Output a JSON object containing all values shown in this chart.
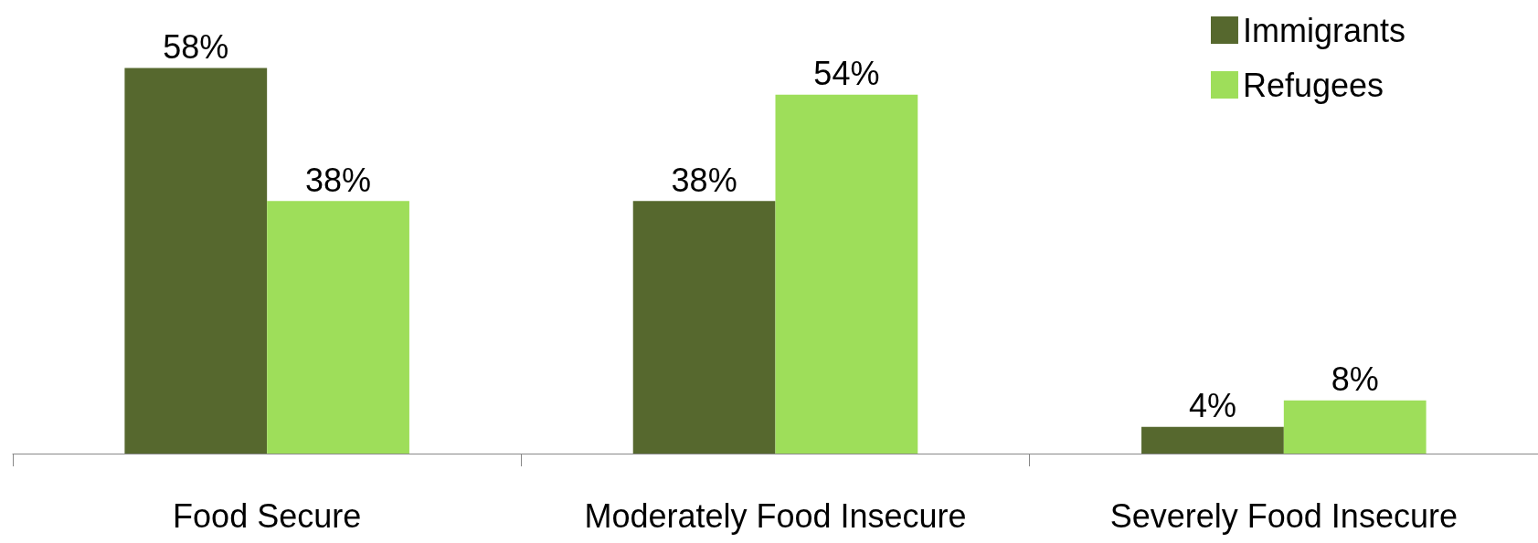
{
  "chart_data": {
    "type": "bar",
    "categories": [
      "Food Secure",
      "Moderately Food Insecure",
      "Severely Food Insecure"
    ],
    "series": [
      {
        "name": "Immigrants",
        "color": "#56682e",
        "values": [
          58,
          38,
          4
        ],
        "value_labels": [
          "58%",
          "38%",
          "4%"
        ]
      },
      {
        "name": "Refugees",
        "color": "#9ede5a",
        "values": [
          38,
          54,
          8
        ],
        "value_labels": [
          "38%",
          "54%",
          "8%"
        ]
      }
    ],
    "legend": "top right"
  }
}
